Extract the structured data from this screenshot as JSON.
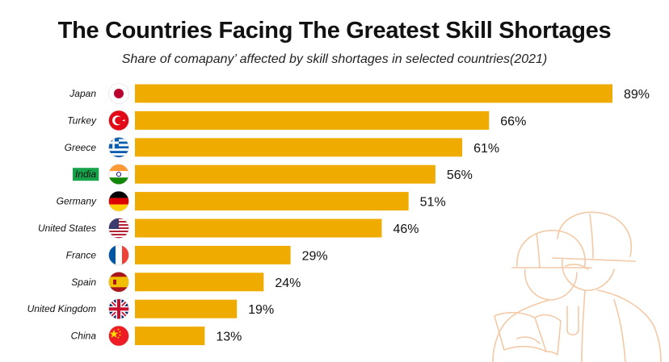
{
  "title": "The Countries Facing The Greatest Skill Shortages",
  "subtitle": "Share of comapany’ affected by skill shortages in selected countries(2021)",
  "colors": {
    "bar": "#F0AB00",
    "highlight": "#17A34A",
    "text": "#111111",
    "illustration": "#F3C9A6"
  },
  "chart_data": {
    "type": "bar",
    "orientation": "horizontal",
    "title": "The Countries Facing The Greatest Skill Shortages",
    "subtitle": "Share of comapany’ affected by skill shortages in selected countries(2021)",
    "unit": "%",
    "xlim": [
      0,
      100
    ],
    "grid": false,
    "highlighted_category": "India",
    "categories": [
      "Japan",
      "Turkey",
      "Greece",
      "India",
      "Germany",
      "United States",
      "France",
      "Spain",
      "United Kingdom",
      "China"
    ],
    "values": [
      89,
      66,
      61,
      56,
      51,
      46,
      29,
      24,
      19,
      13
    ],
    "value_labels": [
      "89%",
      "66%",
      "61%",
      "56%",
      "51%",
      "46%",
      "29%",
      "24%",
      "19%",
      "13%"
    ],
    "flag_icons": [
      "japan-flag-icon",
      "turkey-flag-icon",
      "greece-flag-icon",
      "india-flag-icon",
      "germany-flag-icon",
      "united-states-flag-icon",
      "france-flag-icon",
      "spain-flag-icon",
      "united-kingdom-flag-icon",
      "china-flag-icon"
    ]
  }
}
